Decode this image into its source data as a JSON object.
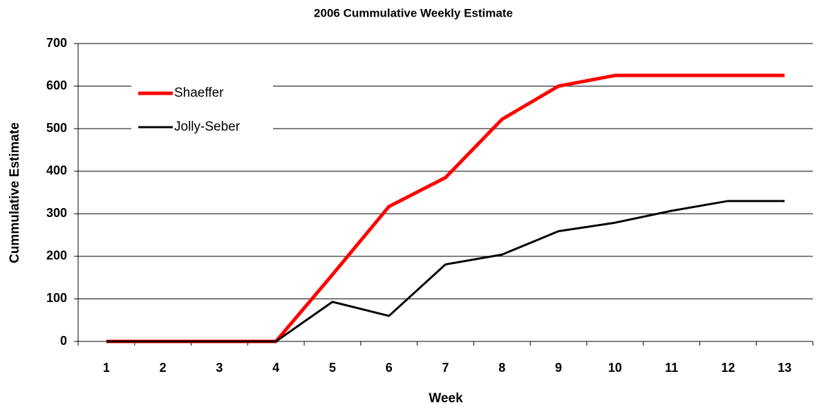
{
  "chart_data": {
    "type": "line",
    "title": "2006 Cummulative Weekly Estimate",
    "x_label": "Week",
    "y_label": "Cummulative Estimate",
    "categories": [
      "1",
      "2",
      "3",
      "4",
      "5",
      "6",
      "7",
      "8",
      "9",
      "10",
      "11",
      "12",
      "13"
    ],
    "series": [
      {
        "name": "Shaeffer",
        "color": "#ff0000",
        "values": [
          0,
          0,
          0,
          0,
          157,
          317,
          385,
          522,
          600,
          625,
          625,
          625,
          625
        ]
      },
      {
        "name": "Jolly-Seber",
        "color": "#000000",
        "values": [
          0,
          0,
          0,
          0,
          93,
          60,
          181,
          204,
          259,
          279,
          307,
          330,
          330
        ]
      }
    ],
    "ylim": [
      0,
      700
    ],
    "yticks": [
      0,
      100,
      200,
      300,
      400,
      500,
      600,
      700
    ],
    "grid": true,
    "legend": "upper-left"
  }
}
